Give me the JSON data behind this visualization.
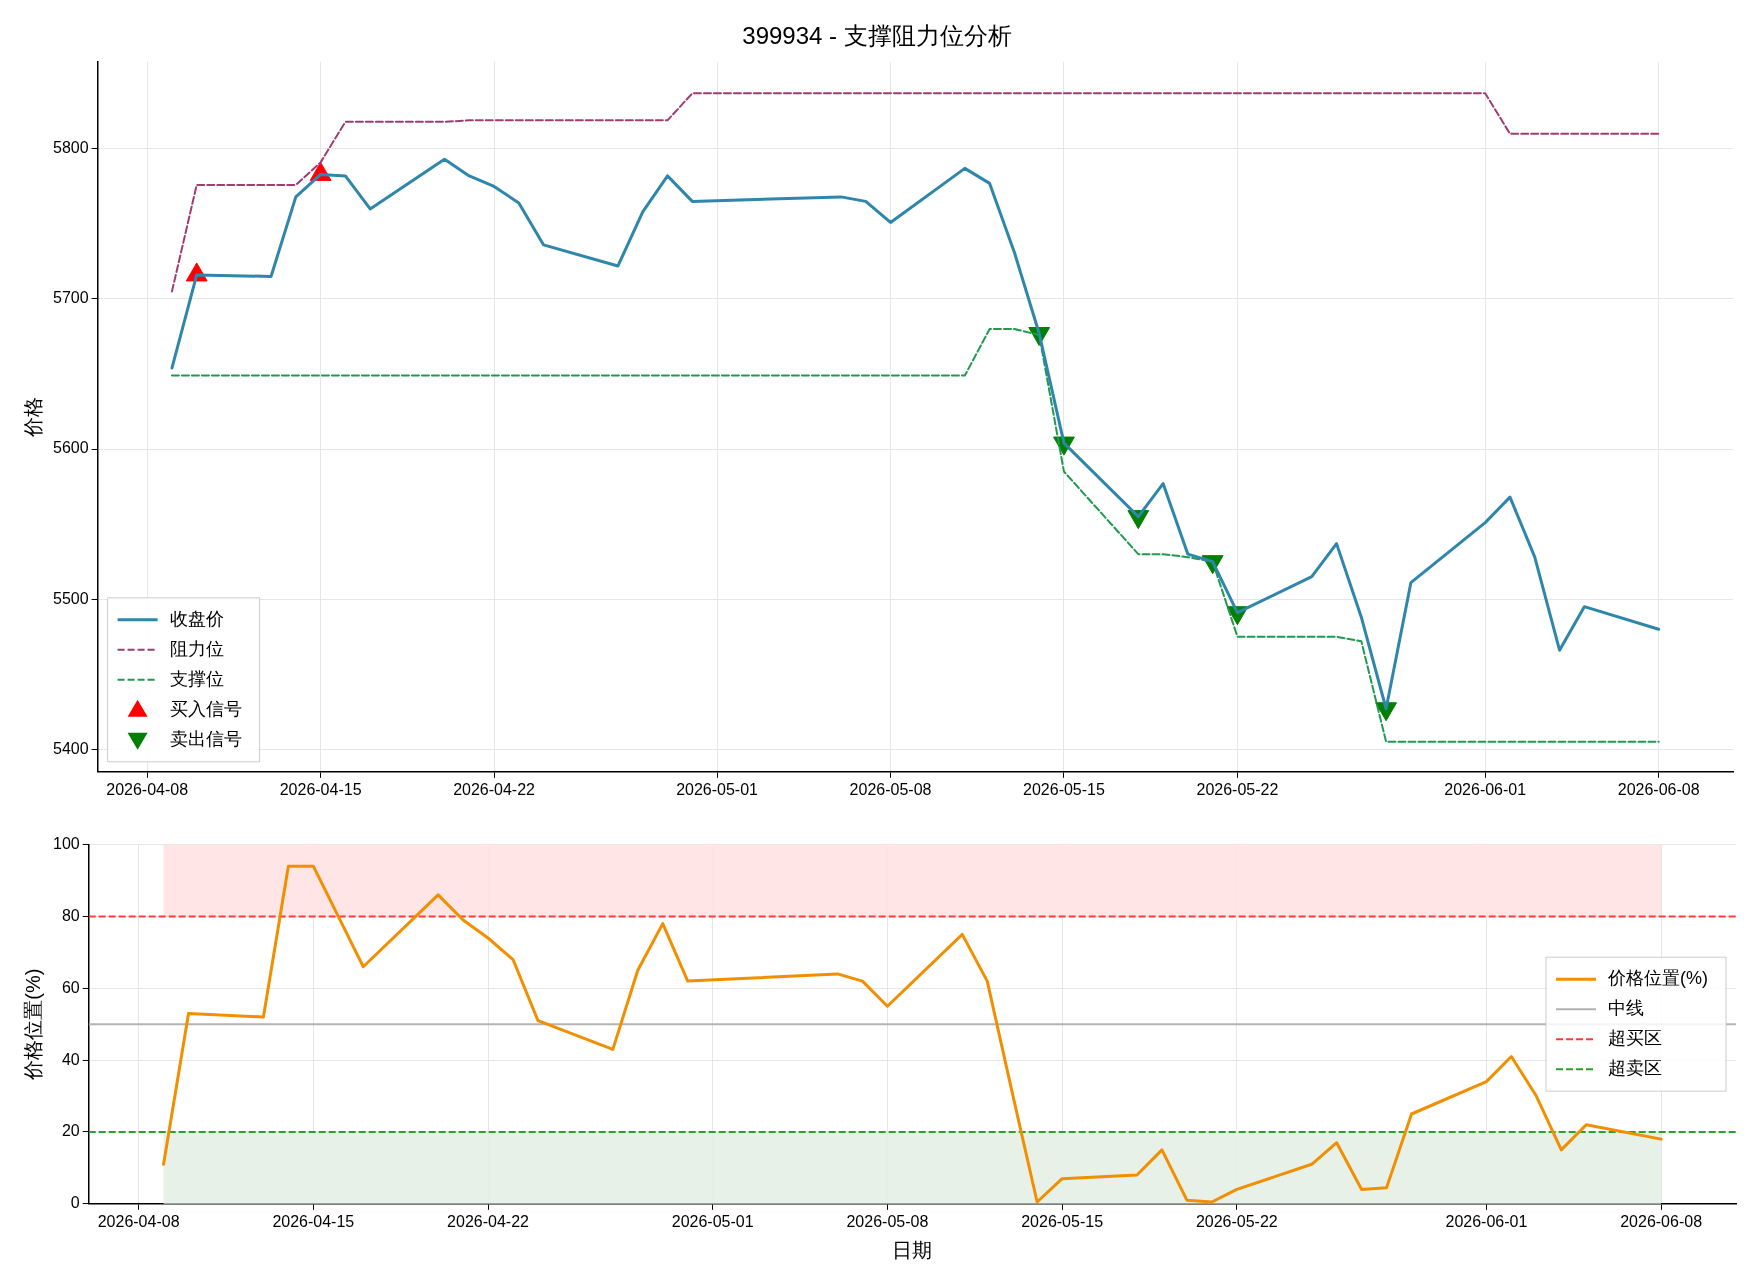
{
  "chart_data": [
    {
      "type": "line",
      "title": "399934 - 支撑阻力位分析",
      "ylabel": "价格",
      "x": [
        "2026-04-09",
        "2026-04-10",
        "2026-04-13",
        "2026-04-14",
        "2026-04-15",
        "2026-04-16",
        "2026-04-17",
        "2026-04-20",
        "2026-04-21",
        "2026-04-22",
        "2026-04-23",
        "2026-04-24",
        "2026-04-27",
        "2026-04-28",
        "2026-04-29",
        "2026-04-30",
        "2026-05-06",
        "2026-05-07",
        "2026-05-08",
        "2026-05-11",
        "2026-05-12",
        "2026-05-13",
        "2026-05-14",
        "2026-05-15",
        "2026-05-18",
        "2026-05-19",
        "2026-05-20",
        "2026-05-21",
        "2026-05-22",
        "2026-05-25",
        "2026-05-26",
        "2026-05-27",
        "2026-05-28",
        "2026-05-29",
        "2026-06-01",
        "2026-06-02",
        "2026-06-03",
        "2026-06-04",
        "2026-06-05",
        "2026-06-08"
      ],
      "series": [
        {
          "name": "收盘价",
          "color": "#2e86ab",
          "line_style": "solid",
          "marker": "none",
          "values": [
            5654,
            5716,
            5715,
            5768,
            5783,
            5782,
            5760,
            5793,
            5782,
            5775,
            5764,
            5736,
            5722,
            5758,
            5782,
            5765,
            5768,
            5765,
            5751,
            5787,
            5777,
            5731,
            5677,
            5604,
            5555,
            5577,
            5530,
            5525,
            5491,
            5515,
            5537,
            5488,
            5427,
            5511,
            5551,
            5568,
            5528,
            5466,
            5495,
            5480
          ]
        },
        {
          "name": "阻力位",
          "color": "#a23b72",
          "line_style": "dashed",
          "marker": "none",
          "values": [
            5705,
            5776,
            5776,
            5776,
            5791,
            5818,
            5818,
            5818,
            5819,
            5819,
            5819,
            5819,
            5819,
            5819,
            5819,
            5837,
            5837,
            5837,
            5837,
            5837,
            5837,
            5837,
            5837,
            5837,
            5837,
            5837,
            5837,
            5837,
            5837,
            5837,
            5837,
            5837,
            5837,
            5837,
            5837,
            5810,
            5810,
            5810,
            5810,
            5810
          ]
        },
        {
          "name": "支撑位",
          "color": "#1f9a4f",
          "line_style": "dashed",
          "marker": "none",
          "values": [
            5649,
            5649,
            5649,
            5649,
            5649,
            5649,
            5649,
            5649,
            5649,
            5649,
            5649,
            5649,
            5649,
            5649,
            5649,
            5649,
            5649,
            5649,
            5649,
            5649,
            5680,
            5680,
            5676,
            5585,
            5530,
            5530,
            5528,
            5525,
            5475,
            5475,
            5475,
            5472,
            5405,
            5405,
            5405,
            5405,
            5405,
            5405,
            5405,
            5405
          ]
        },
        {
          "name": "买入信号",
          "type": "scatter",
          "color": "#ff0000",
          "marker": "triangle",
          "x": [
            "2026-04-10",
            "2026-04-15"
          ],
          "values": [
            5716,
            5783
          ]
        },
        {
          "name": "卖出信号",
          "type": "scatter",
          "color": "#008000",
          "marker": "triangle_down",
          "x": [
            "2026-05-14",
            "2026-05-15",
            "2026-05-18",
            "2026-05-21",
            "2026-05-22",
            "2026-05-28"
          ],
          "values": [
            5677,
            5604,
            5555,
            5525,
            5491,
            5427
          ]
        }
      ],
      "xlim": [
        "2026-04-06",
        "2026-06-11"
      ],
      "xticks": [
        "2026-04-08",
        "2026-04-15",
        "2026-04-22",
        "2026-05-01",
        "2026-05-08",
        "2026-05-15",
        "2026-05-22",
        "2026-06-01",
        "2026-06-08"
      ],
      "ylim": [
        5385,
        5858
      ],
      "yticks": [
        5400,
        5500,
        5600,
        5700,
        5800
      ],
      "grid": true,
      "legend": "bottom left"
    },
    {
      "type": "line",
      "ylabel": "价格位置(%)",
      "xlabel": "日期",
      "x": [
        "2026-04-09",
        "2026-04-10",
        "2026-04-13",
        "2026-04-14",
        "2026-04-15",
        "2026-04-16",
        "2026-04-17",
        "2026-04-20",
        "2026-04-21",
        "2026-04-22",
        "2026-04-23",
        "2026-04-24",
        "2026-04-27",
        "2026-04-28",
        "2026-04-29",
        "2026-04-30",
        "2026-05-06",
        "2026-05-07",
        "2026-05-08",
        "2026-05-11",
        "2026-05-12",
        "2026-05-13",
        "2026-05-14",
        "2026-05-15",
        "2026-05-18",
        "2026-05-19",
        "2026-05-20",
        "2026-05-21",
        "2026-05-22",
        "2026-05-25",
        "2026-05-26",
        "2026-05-27",
        "2026-05-28",
        "2026-05-29",
        "2026-06-01",
        "2026-06-02",
        "2026-06-03",
        "2026-06-04",
        "2026-06-05",
        "2026-06-08"
      ],
      "series": [
        {
          "name": "价格位置(%)",
          "color": "#f18f01",
          "line_style": "solid",
          "marker": "none",
          "values": [
            11,
            53,
            52,
            94,
            94,
            80,
            66,
            86,
            79,
            74,
            68,
            51,
            43,
            65,
            78,
            62,
            64,
            62,
            55,
            75,
            62,
            31,
            0.5,
            7,
            8,
            15,
            1,
            0.5,
            4,
            11,
            17,
            4,
            4.5,
            25,
            34,
            41,
            30,
            15,
            22,
            18
          ]
        }
      ],
      "ref_lines": [
        {
          "axis": "y",
          "value": 50,
          "label": "中线",
          "color": "#b3b3b3",
          "line_style": "solid"
        },
        {
          "axis": "y",
          "value": 80,
          "label": "超买区",
          "color": "#ff3b3b",
          "line_style": "dashed"
        },
        {
          "axis": "y",
          "value": 20,
          "label": "超卖区",
          "color": "#2ca02c",
          "line_style": "dashed"
        }
      ],
      "bands": [
        {
          "axis": "y",
          "from": 80,
          "to": 100,
          "color": "#ffe2e2"
        },
        {
          "axis": "y",
          "from": 0,
          "to": 20,
          "color": "#e4f0e4"
        }
      ],
      "xlim": [
        "2026-04-06",
        "2026-06-11"
      ],
      "xticks": [
        "2026-04-08",
        "2026-04-15",
        "2026-04-22",
        "2026-05-01",
        "2026-05-08",
        "2026-05-15",
        "2026-05-22",
        "2026-06-01",
        "2026-06-08"
      ],
      "ylim": [
        0,
        100
      ],
      "yticks": [
        0,
        20,
        40,
        60,
        80,
        100
      ],
      "grid": true,
      "legend": "right"
    }
  ]
}
